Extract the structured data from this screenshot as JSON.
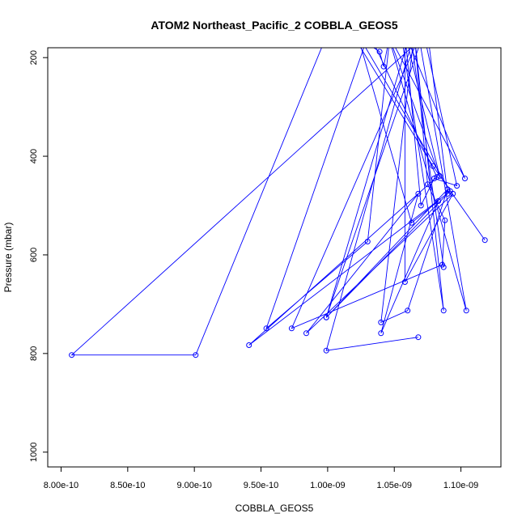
{
  "chart_data": {
    "type": "line",
    "title": "ATOM2 Northeast_Pacific_2 COBBLA_GEOS5",
    "xlabel": "COBBLA_GEOS5",
    "ylabel": "Pressure (mbar)",
    "xlim": [
      7.9e-10,
      1.13e-09
    ],
    "ylim": [
      1030,
      180
    ],
    "y_reversed": true,
    "grid": false,
    "x_ticks": [
      {
        "value": 8e-10,
        "label": "8.00e-10"
      },
      {
        "value": 8.5e-10,
        "label": "8.50e-10"
      },
      {
        "value": 9e-10,
        "label": "9.00e-10"
      },
      {
        "value": 9.5e-10,
        "label": "9.50e-10"
      },
      {
        "value": 1e-09,
        "label": "1.00e-09"
      },
      {
        "value": 1.05e-09,
        "label": "1.05e-09"
      },
      {
        "value": 1.1e-09,
        "label": "1.10e-09"
      }
    ],
    "y_ticks": [
      {
        "value": 200,
        "label": "200"
      },
      {
        "value": 400,
        "label": "400"
      },
      {
        "value": 600,
        "label": "600"
      },
      {
        "value": 800,
        "label": "800"
      },
      {
        "value": 1000,
        "label": "1000"
      }
    ],
    "series_color": "#0000ff",
    "series": [
      {
        "x": [
          1.118e-09,
          1.079e-09,
          1.018e-09,
          1.039e-09,
          1.042e-09,
          1.047e-09,
          1.03e-09,
          9.54e-10,
          1.031e-09,
          1.082e-09,
          9.41e-10,
          1.092e-09,
          1.022e-09,
          1.063e-09,
          1.083e-09,
          1.04e-09,
          1.068e-09,
          9.84e-10,
          1.094e-09,
          1.058e-09,
          1.058e-09,
          1.07e-09,
          1.08e-09,
          1.097e-09,
          1.072e-09,
          9.99e-10,
          1.09e-09,
          1.06e-09,
          1.04e-09,
          1.065e-09,
          1.075e-09,
          1.088e-09,
          1.086e-09,
          9.73e-10,
          1.07e-09,
          1.045e-09,
          1.084e-09,
          1.058e-09,
          1.103e-09,
          1.045e-09,
          1.104e-09,
          1.068e-09,
          1.055e-09,
          1.087e-09,
          1.065e-09,
          9.99e-10,
          1.068e-09
        ],
        "y": [
          570,
          420,
          150,
          188,
          218,
          150,
          573,
          749,
          150,
          442,
          783,
          471,
          150,
          535,
          491,
          759,
          476,
          759,
          476,
          655,
          150,
          500,
          445,
          460,
          150,
          727,
          467,
          713,
          737,
          150,
          457,
          530,
          620,
          749,
          150,
          150,
          440,
          150,
          445,
          150,
          713,
          150,
          150,
          713,
          150,
          794,
          767
        ]
      },
      {
        "x": [
          1.087e-09,
          1.062e-09,
          9.99e-10,
          1.09e-09,
          1.075e-09,
          8.08e-10,
          9.01e-10,
          1e-09
        ],
        "y": [
          625,
          150,
          727,
          476,
          150,
          803,
          803,
          150
        ]
      }
    ]
  }
}
